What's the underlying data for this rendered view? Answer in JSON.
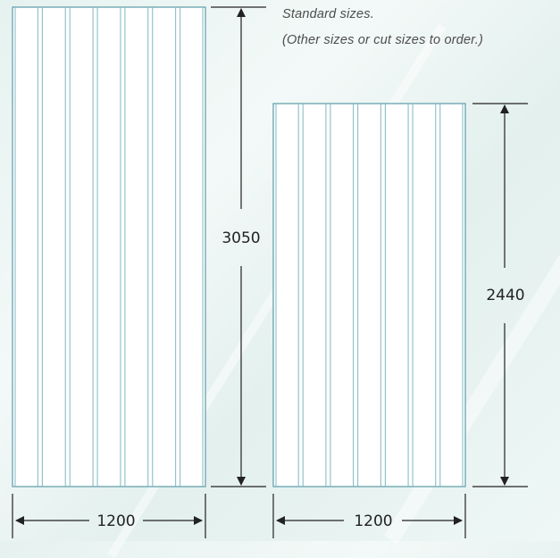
{
  "notes": {
    "line1": "Standard sizes.",
    "line2": "(Other sizes or cut sizes to order.)"
  },
  "panels": [
    {
      "name": "tall-panel",
      "width_label": "1200",
      "height_label": "3050",
      "corrugations": 7
    },
    {
      "name": "short-panel",
      "width_label": "1200",
      "height_label": "2440",
      "corrugations": 7
    }
  ],
  "colors": {
    "panel_fill": "#ffffff",
    "panel_rib": "#7fb8c3",
    "dimension_line": "#222222",
    "background": "#e8f3f1"
  }
}
